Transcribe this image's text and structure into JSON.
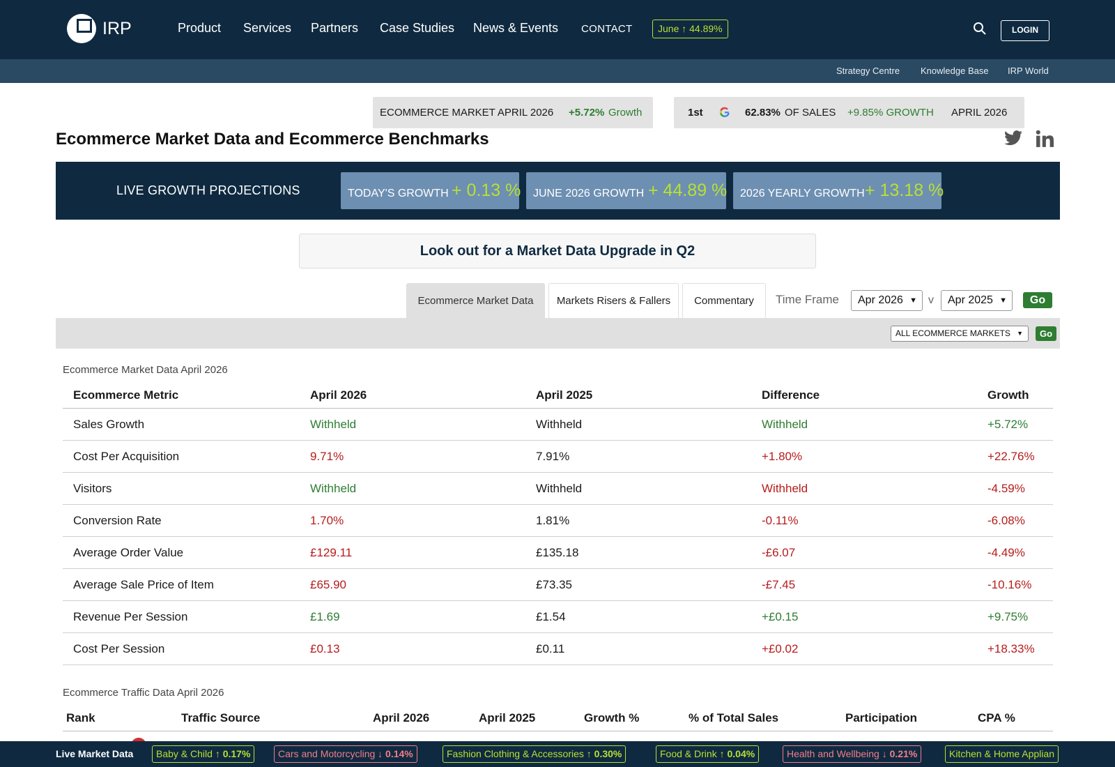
{
  "nav": {
    "logo_text": "IRP",
    "items": [
      "Product",
      "Services",
      "Partners",
      "Case Studies",
      "News & Events"
    ],
    "contact": "CONTACT",
    "june_badge": "June ↑ 44.89%",
    "login": "LOGIN"
  },
  "subnav": [
    "Strategy Centre",
    "Knowledge Base",
    "IRP World"
  ],
  "market_box": {
    "label": "ECOMMERCE MARKET APRIL 2026",
    "value": "+5.72%",
    "suffix": "Growth"
  },
  "google_box": {
    "rank": "1st",
    "share_value": "62.83%",
    "share_label": "OF SALES",
    "growth": "+9.85% GROWTH",
    "period": "APRIL 2026"
  },
  "page_title": "Ecommerce Market Data and Ecommerce Benchmarks",
  "growth_band": {
    "label": "LIVE GROWTH PROJECTIONS",
    "boxes": [
      {
        "label": "TODAY'S GROWTH",
        "value": "+ 0.13 %"
      },
      {
        "label": "JUNE 2026 GROWTH",
        "value": "+ 44.89 %"
      },
      {
        "label": "2026 YEARLY GROWTH",
        "value": "+ 13.18 %"
      }
    ]
  },
  "upgrade_banner": "Look out for a Market Data Upgrade in Q2",
  "tabs": [
    "Ecommerce Market Data",
    "Markets Risers & Fallers",
    "Commentary"
  ],
  "timeframe": {
    "label": "Time Frame",
    "from": "Apr 2026",
    "vs": "v",
    "to": "Apr 2025",
    "go": "Go"
  },
  "filter": {
    "market": "ALL ECOMMERCE MARKETS",
    "go": "Go"
  },
  "market_table": {
    "caption": "Ecommerce Market Data April 2026",
    "headers": [
      "Ecommerce Metric",
      "April 2026",
      "April 2025",
      "Difference",
      "Growth"
    ],
    "rows": [
      {
        "metric": "Sales Growth",
        "current": "Withheld",
        "previous": "Withheld",
        "difference": "Withheld",
        "growth": "+5.72%"
      },
      {
        "metric": "Cost Per Acquisition",
        "current": "9.71%",
        "previous": "7.91%",
        "difference": "+1.80%",
        "growth": "+22.76%"
      },
      {
        "metric": "Visitors",
        "current": "Withheld",
        "previous": "Withheld",
        "difference": "Withheld",
        "growth": "-4.59%"
      },
      {
        "metric": "Conversion Rate",
        "current": "1.70%",
        "previous": "1.81%",
        "difference": "-0.11%",
        "growth": "-6.08%"
      },
      {
        "metric": "Average Order Value",
        "current": "£129.11",
        "previous": "£135.18",
        "difference": "-£6.07",
        "growth": "-4.49%"
      },
      {
        "metric": "Average Sale Price of Item",
        "current": "£65.90",
        "previous": "£73.35",
        "difference": "-£7.45",
        "growth": "-10.16%"
      },
      {
        "metric": "Revenue Per Session",
        "current": "£1.69",
        "previous": "£1.54",
        "difference": "+£0.15",
        "growth": "+9.75%"
      },
      {
        "metric": "Cost Per Session",
        "current": "£0.13",
        "previous": "£0.11",
        "difference": "+£0.02",
        "growth": "+18.33%"
      }
    ]
  },
  "traffic_table": {
    "caption": "Ecommerce Traffic Data April 2026",
    "headers": [
      "Rank",
      "Traffic Source",
      "April 2026",
      "April 2025",
      "Growth %",
      "% of Total Sales",
      "Participation",
      "CPA %"
    ]
  },
  "ticker": {
    "title": "Live Market Data",
    "items": [
      {
        "name": "Baby & Child",
        "change": "↑ 0.17%"
      },
      {
        "name": "Cars and Motorcycling",
        "change": "↓ 0.14%"
      },
      {
        "name": "Fashion Clothing & Accessories",
        "change": "↑ 0.30%"
      },
      {
        "name": "Food & Drink",
        "change": "↑ 0.04%"
      },
      {
        "name": "Health and Wellbeing",
        "change": "↓ 0.21%"
      },
      {
        "name": "Kitchen & Home Applian",
        "change": ""
      }
    ]
  },
  "colors": {
    "navy": "#0f2a40",
    "accent_lime": "#b9e032",
    "positive": "#2e7d32",
    "negative": "#b71c1c"
  }
}
